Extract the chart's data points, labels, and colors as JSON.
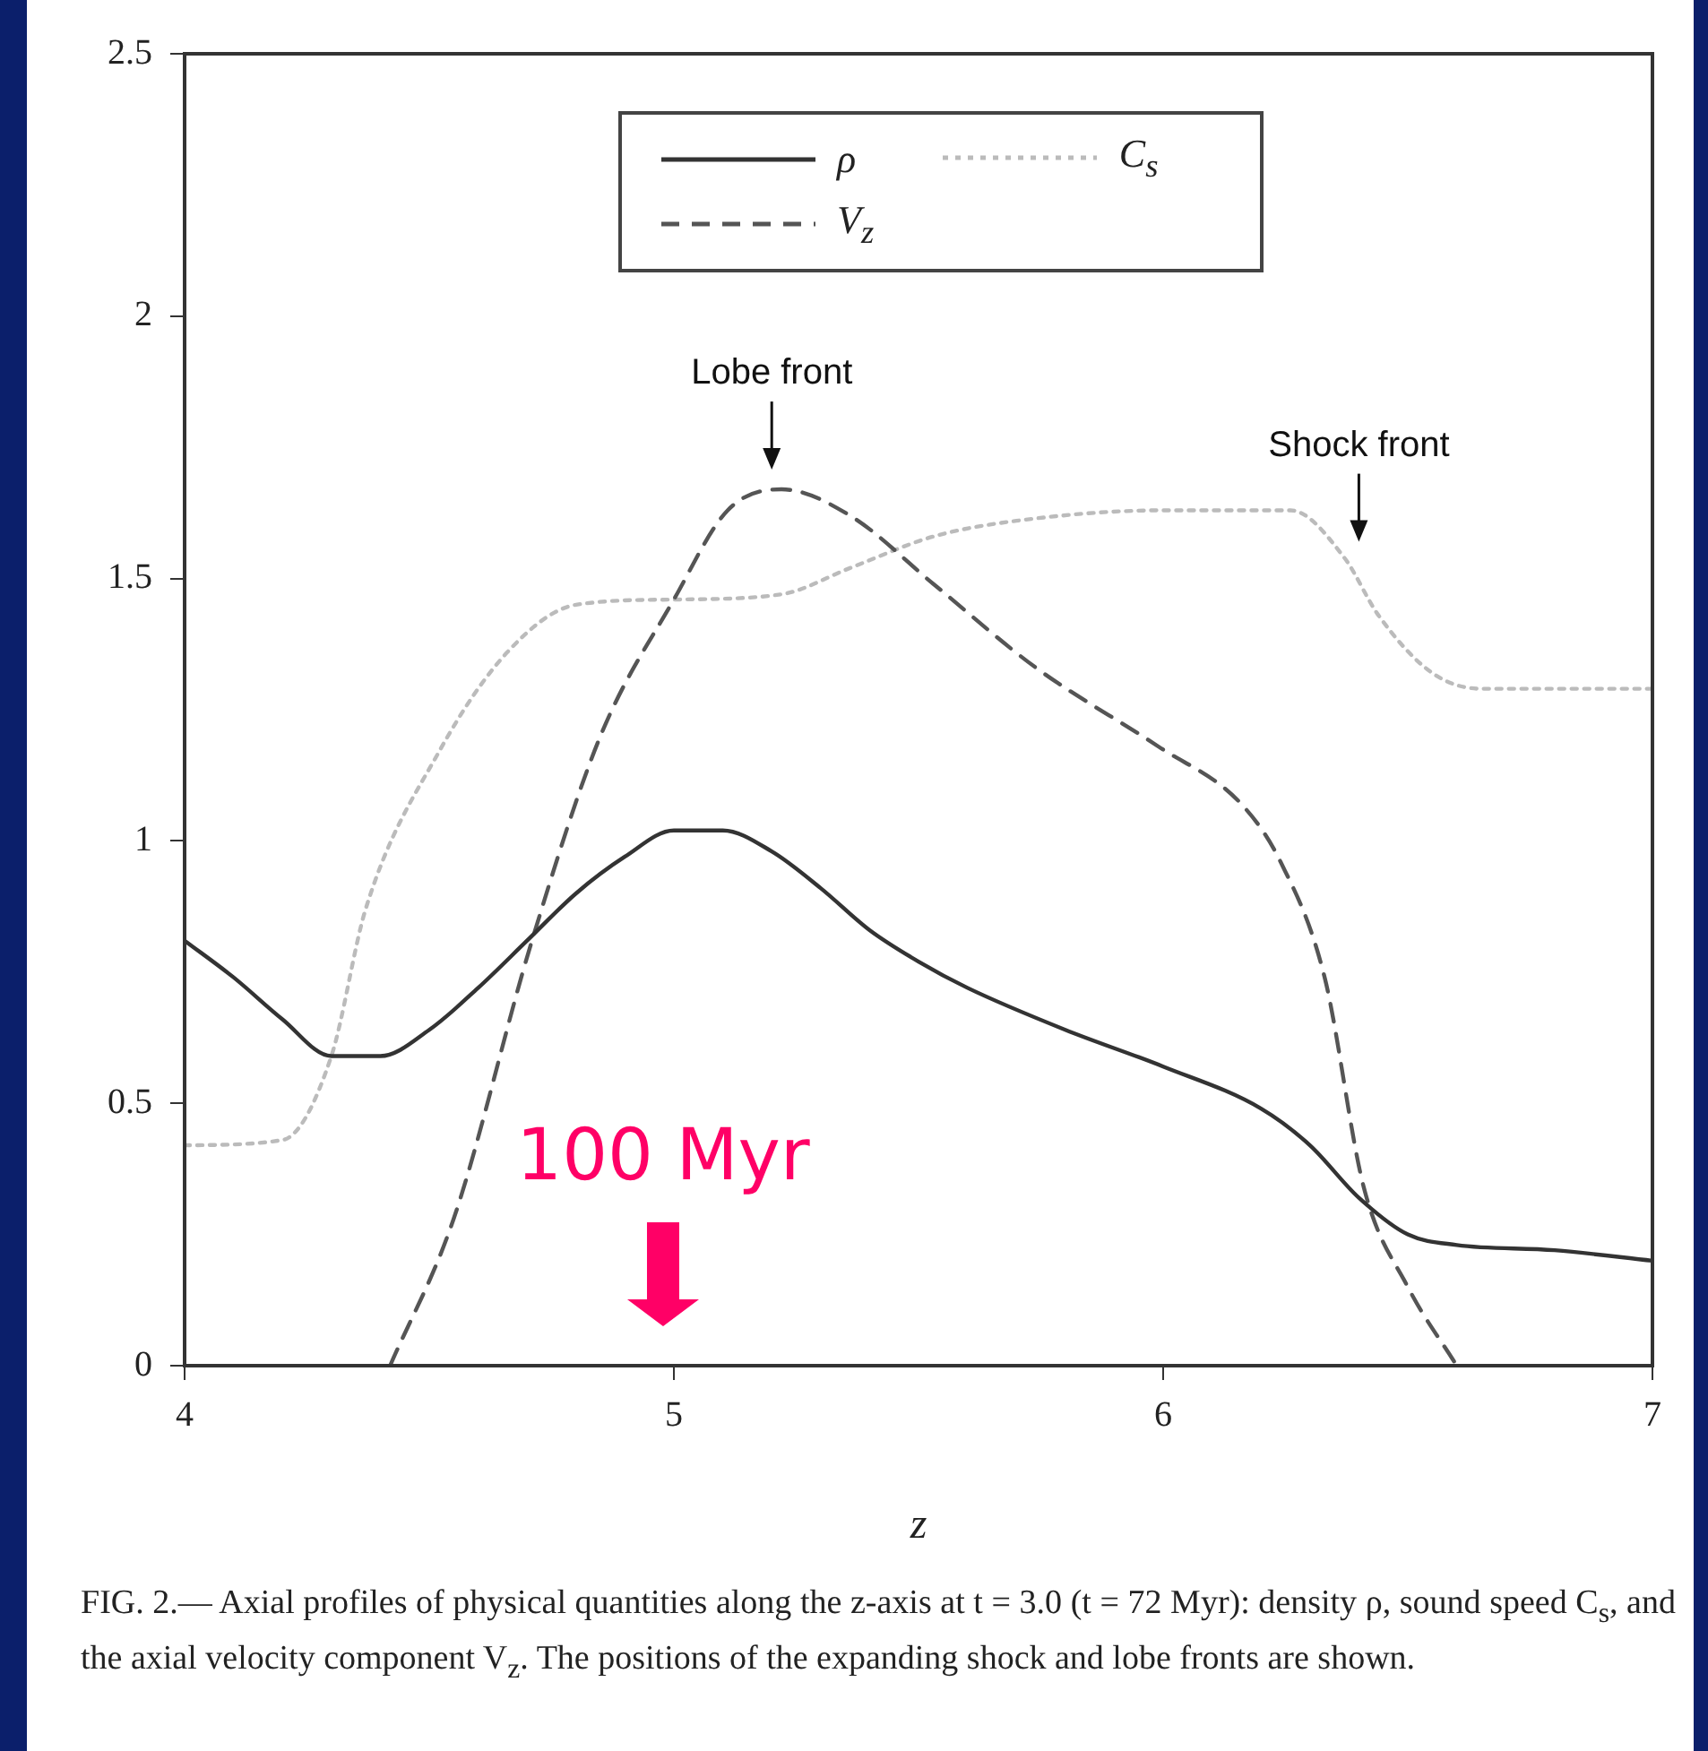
{
  "chart_data": {
    "type": "line",
    "xlabel": "z",
    "xlim": [
      4,
      7
    ],
    "xticks": [
      4,
      5,
      6,
      7
    ],
    "ylim": [
      0,
      2.5
    ],
    "yticks": [
      0,
      0.5,
      1,
      1.5,
      2,
      2.5
    ],
    "grid": false,
    "legend": "top",
    "marker": "none",
    "series": [
      {
        "name": "ρ",
        "color": "#333333",
        "line_style": "solid",
        "x": [
          4.0,
          4.1,
          4.2,
          4.3,
          4.4,
          4.5,
          4.6,
          4.7,
          4.8,
          4.9,
          5.0,
          5.1,
          5.2,
          5.3,
          5.4,
          5.5,
          5.6,
          5.8,
          6.0,
          6.2,
          6.3,
          6.4,
          6.5,
          6.6,
          6.8,
          7.0
        ],
        "values": [
          0.81,
          0.74,
          0.66,
          0.59,
          0.59,
          0.64,
          0.72,
          0.81,
          0.9,
          0.97,
          1.02,
          1.02,
          0.98,
          0.91,
          0.83,
          0.77,
          0.72,
          0.64,
          0.57,
          0.49,
          0.42,
          0.32,
          0.25,
          0.23,
          0.22,
          0.2
        ]
      },
      {
        "name": "V$_{z}$",
        "color": "#555555",
        "line_style": "dashed",
        "x": [
          4.42,
          4.55,
          4.71,
          4.85,
          5.0,
          5.11,
          5.22,
          5.36,
          5.53,
          5.74,
          5.99,
          6.16,
          6.24,
          6.33,
          6.41,
          6.5,
          6.6
        ],
        "values": [
          0,
          0.28,
          0.81,
          1.2,
          1.46,
          1.63,
          1.67,
          1.62,
          1.49,
          1.33,
          1.18,
          1.07,
          0.96,
          0.74,
          0.34,
          0.15,
          0
        ]
      },
      {
        "name": "C$_{s}$",
        "color": "#bbbbbb",
        "line_style": "dotted",
        "x": [
          4.0,
          4.2,
          4.3,
          4.37,
          4.52,
          4.66,
          4.8,
          5.0,
          5.22,
          5.36,
          5.53,
          5.7,
          6.0,
          6.26,
          6.37,
          6.44,
          6.55,
          6.65,
          7.0
        ],
        "values": [
          0.42,
          0.43,
          0.59,
          0.87,
          1.17,
          1.36,
          1.45,
          1.46,
          1.47,
          1.52,
          1.58,
          1.61,
          1.63,
          1.63,
          1.54,
          1.43,
          1.32,
          1.29,
          1.29
        ]
      }
    ],
    "annotations": [
      "Lobe front",
      "Shock front",
      "100 Myr",
      "FIG. 2.— Axial profiles of physical quantities along the z-axis at t = 3.0 (t = 72 Myr): density ρ, sound speed C$_{s}$, and the axial velocity component V$_{z}$. The positions of the expanding shock and lobe fronts are shown."
    ]
  }
}
